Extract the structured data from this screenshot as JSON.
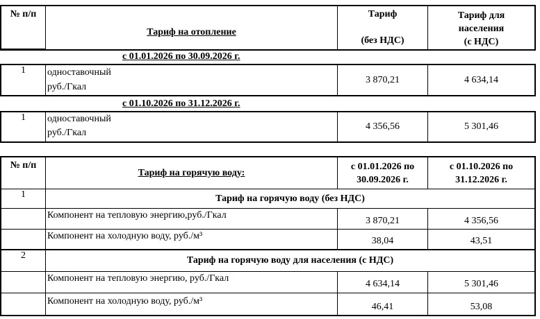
{
  "heating": {
    "headers": {
      "num": "№ п/п",
      "title": "Тариф на отопление",
      "tariff_l1": "Тариф",
      "tariff_l2": "(без НДС)",
      "pop_l1": "Тариф для",
      "pop_l2": "населения",
      "pop_l3": "(с НДС)"
    },
    "periods": [
      {
        "label": "с 01.01.2026 по 30.09.2026 г.",
        "num": "1",
        "name": "одноставочный",
        "unit": "руб./Гкал",
        "tariff": "3 870,21",
        "pop": "4 634,14"
      },
      {
        "label": "с 01.10.2026 по 31.12.2026 г.",
        "num": "1",
        "name": "одноставочный",
        "unit": "руб./Гкал",
        "tariff": "4 356,56",
        "pop": "5 301,46"
      }
    ]
  },
  "hot_water": {
    "headers": {
      "num": "№ п/п",
      "title": "Тариф на горячую воду:",
      "p1_l1": "с 01.01.2026 по",
      "p1_l2": "30.09.2026 г.",
      "p2_l1": "с 01.10.2026 по",
      "p2_l2": "31.12.2026 г."
    },
    "groups": [
      {
        "num": "1",
        "title": "Тариф на  горячую воду  (без НДС)",
        "rows": [
          {
            "label": "Компонент на тепловую энергию,руб./Гкал",
            "p1": "3 870,21",
            "p2": "4 356,56"
          },
          {
            "label": "Компонент на холодную воду, руб./м³",
            "p1": "38,04",
            "p2": "43,51"
          }
        ]
      },
      {
        "num": "2",
        "title": "Тариф на горячую воду для населения   (с НДС)",
        "rows": [
          {
            "label": "Компонент на тепловую энергию, руб./Гкал",
            "p1": "4 634,14",
            "p2": "5 301,46"
          },
          {
            "label": "Компонент на холодную воду, руб./м³",
            "p1": "46,41",
            "p2": "53,08"
          }
        ]
      }
    ]
  }
}
